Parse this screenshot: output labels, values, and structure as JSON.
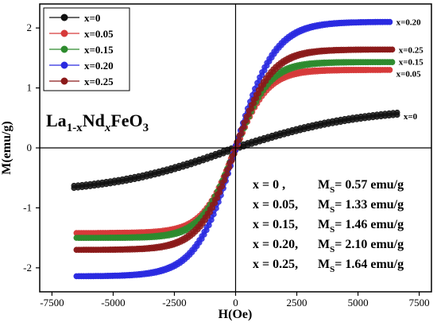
{
  "chart_data": {
    "type": "scatter",
    "xlabel": "H(Oe)",
    "ylabel": "M(emu/g)",
    "xlim": [
      -8000,
      8000
    ],
    "ylim": [
      -2.4,
      2.4
    ],
    "xticks": [
      -7500,
      -5000,
      -2500,
      0,
      2500,
      5000,
      7500
    ],
    "yticks": [
      -2,
      -1,
      0,
      1,
      2
    ],
    "grid": false,
    "legend_position": "top-left",
    "annotation": {
      "formula": {
        "base1": "La",
        "sub1": "1-x",
        "base2": "Nd",
        "sub2": "x",
        "base3": "FeO",
        "sub3": "3"
      },
      "ms_table": [
        {
          "x_label": "x = 0 ,",
          "ms_label": "M",
          "ms_sub": "S",
          "ms_value": "= 0.57 emu/g"
        },
        {
          "x_label": "x = 0.05,",
          "ms_label": "M",
          "ms_sub": "S",
          "ms_value": "= 1.33 emu/g"
        },
        {
          "x_label": "x = 0.15,",
          "ms_label": "M",
          "ms_sub": "S",
          "ms_value": "= 1.46 emu/g"
        },
        {
          "x_label": "x = 0.20,",
          "ms_label": "M",
          "ms_sub": "S",
          "ms_value": "= 2.10 emu/g"
        },
        {
          "x_label": "x = 0.25,",
          "ms_label": "M",
          "ms_sub": "S",
          "ms_value": "= 1.64 emu/g"
        }
      ]
    },
    "series": [
      {
        "name": "x=0",
        "color": "#111111",
        "end_label": "x=0",
        "x_range": [
          -6600,
          6600
        ],
        "m_max": -0.65,
        "m_max_pos": 0.57,
        "h0": 5200,
        "curve": "linear-langevin",
        "lin": 2.8e-06
      },
      {
        "name": "x=0.05",
        "color": "#d63a3a",
        "end_label": "x=0.05",
        "x_range": [
          -6500,
          6300
        ],
        "m_max": -1.42,
        "m_max_pos": 1.3,
        "h0": 1300,
        "curve": "langevin",
        "lin": 3.5e-05
      },
      {
        "name": "x=0.15",
        "color": "#2e8b2e",
        "end_label": "x=0.15",
        "x_range": [
          -6500,
          6400
        ],
        "m_max": -1.5,
        "m_max_pos": 1.43,
        "h0": 1350,
        "curve": "langevin",
        "lin": 3.3e-05
      },
      {
        "name": "x=0.20",
        "color": "#2a2ae0",
        "end_label": "x=0.20",
        "x_range": [
          -6500,
          6300
        ],
        "m_max": -2.14,
        "m_max_pos": 2.1,
        "h0": 1600,
        "curve": "langevin",
        "lin": 5.2e-05
      },
      {
        "name": "x=0.25",
        "color": "#8b1a1a",
        "end_label": "x=0.25",
        "x_range": [
          -6500,
          6400
        ],
        "m_max": -1.7,
        "m_max_pos": 1.64,
        "h0": 1450,
        "curve": "langevin",
        "lin": 3.8e-05
      }
    ]
  }
}
